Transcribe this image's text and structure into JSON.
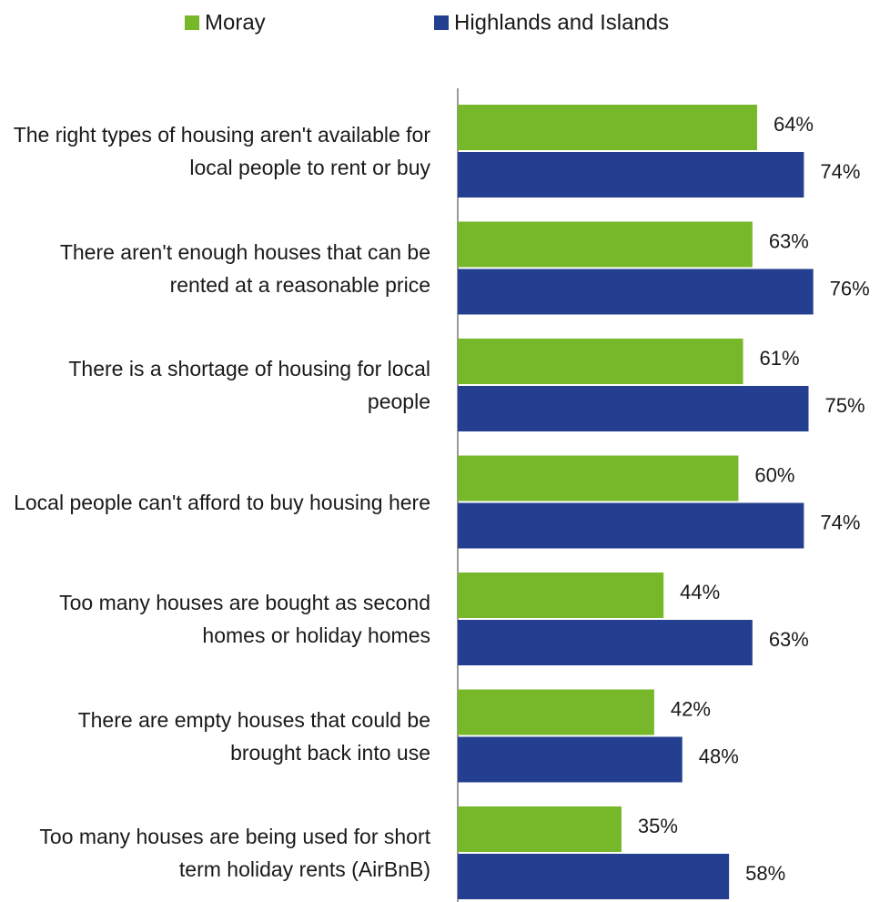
{
  "chart_data": {
    "type": "bar",
    "orientation": "horizontal",
    "categories": [
      "The right types of housing aren't available for local people to rent or buy",
      "There aren't enough houses that can be rented at a reasonable price",
      "There is a shortage of housing for local people",
      "Local people can't afford to buy housing here",
      "Too many houses are bought as second homes or holiday homes",
      "There are empty houses that could be brought back into use",
      "Too many houses are being used for short term holiday rents (AirBnB)"
    ],
    "series": [
      {
        "name": "Moray",
        "color": "#76b82a",
        "values": [
          64,
          63,
          61,
          60,
          44,
          42,
          35
        ],
        "value_labels": [
          "64%",
          "63%",
          "61%",
          "60%",
          "44%",
          "42%",
          "35%"
        ]
      },
      {
        "name": "Highlands and Islands",
        "color": "#243f8f",
        "values": [
          74,
          76,
          75,
          74,
          63,
          48,
          58
        ],
        "value_labels": [
          "74%",
          "76%",
          "75%",
          "74%",
          "63%",
          "48%",
          "58%"
        ]
      }
    ],
    "legend": "top"
  }
}
